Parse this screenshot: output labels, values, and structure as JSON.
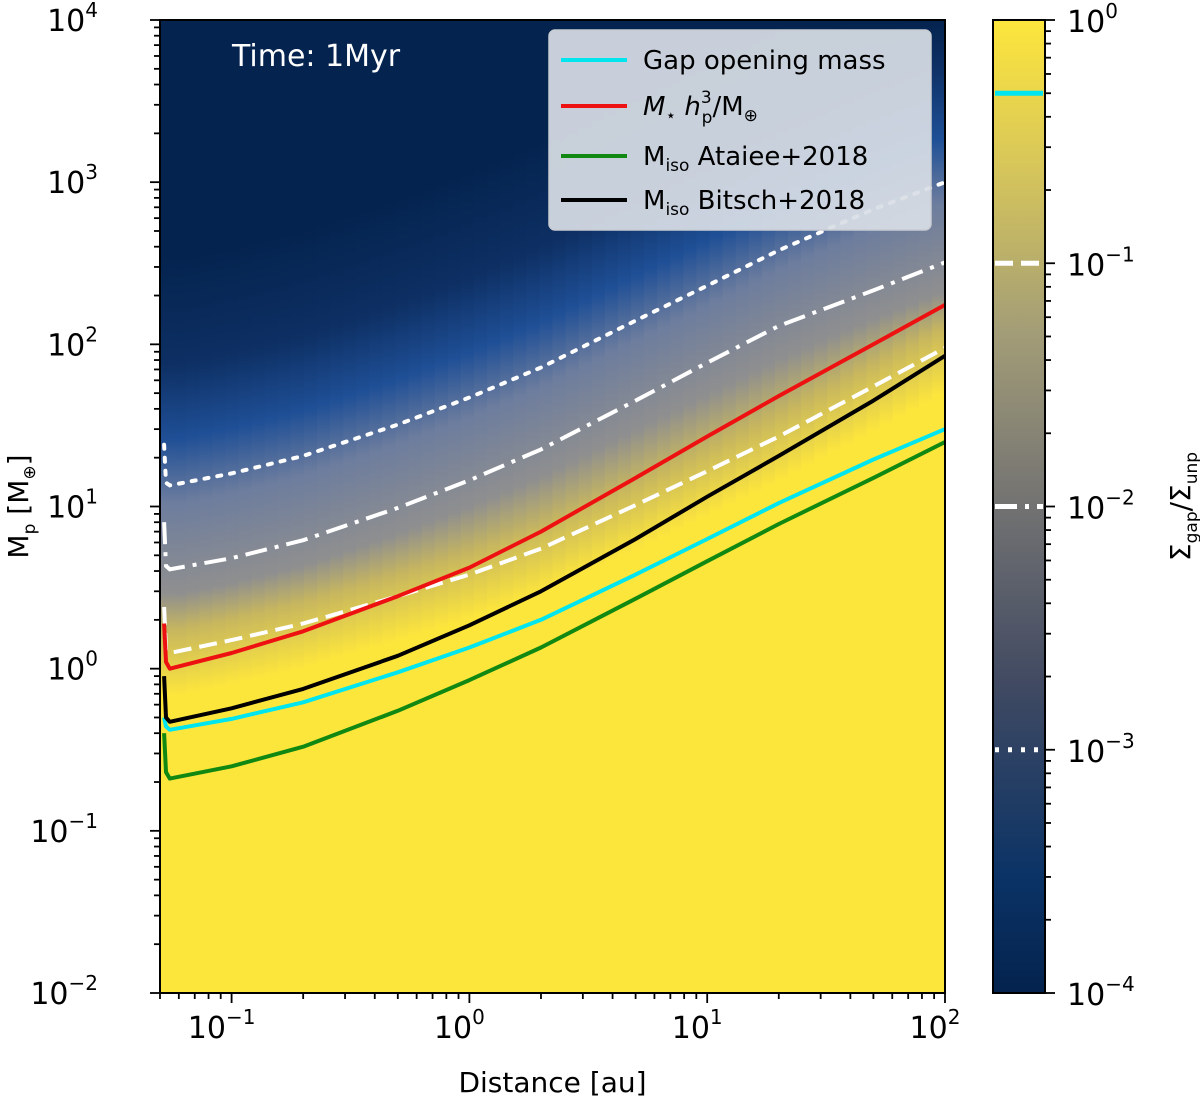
{
  "chart_data": {
    "type": "line",
    "title": "",
    "annotation": "Time: 1Myr",
    "xlabel": "Distance [au]",
    "ylabel": {
      "main": "M",
      "sub": "p",
      "unit": "[M",
      "unit_sub": "⊕",
      "unit_close": "]"
    },
    "xscale": "log",
    "yscale": "log",
    "xlim": [
      0.05,
      100
    ],
    "ylim": [
      0.01,
      10000
    ],
    "x_ticks": [
      {
        "value": 0.1,
        "base": "10",
        "exp": "−1"
      },
      {
        "value": 1,
        "base": "10",
        "exp": "0"
      },
      {
        "value": 10,
        "base": "10",
        "exp": "1"
      },
      {
        "value": 100,
        "base": "10",
        "exp": "2"
      }
    ],
    "y_ticks": [
      {
        "value": 0.01,
        "base": "10",
        "exp": "−2"
      },
      {
        "value": 0.1,
        "base": "10",
        "exp": "−1"
      },
      {
        "value": 1,
        "base": "10",
        "exp": "0"
      },
      {
        "value": 10,
        "base": "10",
        "exp": "1"
      },
      {
        "value": 100,
        "base": "10",
        "exp": "2"
      },
      {
        "value": 1000,
        "base": "10",
        "exp": "3"
      },
      {
        "value": 10000,
        "base": "10",
        "exp": "4"
      }
    ],
    "legend_position": "top-right",
    "series": [
      {
        "name": "Gap opening mass",
        "color": "#00e5ee",
        "style": "solid",
        "x": [
          0.052,
          0.053,
          0.055,
          0.1,
          0.2,
          0.5,
          1,
          2,
          5,
          10,
          20,
          50,
          100
        ],
        "y": [
          0.5,
          0.44,
          0.42,
          0.49,
          0.62,
          0.95,
          1.35,
          2.0,
          3.8,
          6.3,
          10.5,
          19.5,
          30
        ]
      },
      {
        "name": "M⋆ h_p^3 / M⊕",
        "color": "#ee1111",
        "style": "solid",
        "x": [
          0.052,
          0.053,
          0.055,
          0.1,
          0.2,
          0.5,
          1,
          2,
          5,
          10,
          20,
          50,
          100
        ],
        "y": [
          1.9,
          1.1,
          1.0,
          1.25,
          1.7,
          2.8,
          4.2,
          7.0,
          15,
          27,
          48,
          100,
          175
        ]
      },
      {
        "name": "M_iso Ataiee+2018",
        "color": "#118811",
        "style": "solid",
        "x": [
          0.052,
          0.053,
          0.055,
          0.1,
          0.2,
          0.5,
          1,
          2,
          5,
          10,
          20,
          50,
          100
        ],
        "y": [
          0.4,
          0.23,
          0.21,
          0.25,
          0.33,
          0.55,
          0.85,
          1.35,
          2.7,
          4.6,
          7.8,
          15,
          25
        ]
      },
      {
        "name": "M_iso Bitsch+2018",
        "color": "#000000",
        "style": "solid",
        "x": [
          0.052,
          0.053,
          0.055,
          0.1,
          0.2,
          0.5,
          1,
          2,
          5,
          10,
          20,
          50,
          100
        ],
        "y": [
          0.9,
          0.5,
          0.47,
          0.57,
          0.75,
          1.2,
          1.85,
          3.0,
          6.3,
          11.5,
          20.5,
          45,
          85
        ]
      }
    ],
    "contours": [
      {
        "level": 0.1,
        "style": "dashed",
        "x": [
          0.052,
          0.053,
          0.055,
          0.1,
          0.2,
          0.5,
          1,
          2,
          5,
          10,
          20,
          50,
          100
        ],
        "y": [
          2.4,
          1.3,
          1.25,
          1.5,
          1.9,
          2.8,
          3.8,
          5.5,
          10.2,
          16.5,
          27,
          55,
          95
        ]
      },
      {
        "level": 0.01,
        "style": "dashdot",
        "x": [
          0.052,
          0.053,
          0.055,
          0.1,
          0.2,
          0.5,
          1,
          2,
          5,
          10,
          20,
          50,
          100
        ],
        "y": [
          8.0,
          4.3,
          4.1,
          4.8,
          6.2,
          9.8,
          14.5,
          22.5,
          45,
          77,
          130,
          215,
          320
        ]
      },
      {
        "level": 0.001,
        "style": "dotted",
        "x": [
          0.052,
          0.053,
          0.055,
          0.1,
          0.2,
          0.5,
          1,
          2,
          5,
          10,
          20,
          50,
          100
        ],
        "y": [
          24,
          14,
          13.5,
          16,
          20.5,
          32,
          47,
          72,
          140,
          230,
          380,
          680,
          1000
        ]
      }
    ],
    "colorbar": {
      "label": {
        "main": "Σ",
        "sub1": "gap",
        "sep": "/Σ",
        "sub2": "unp"
      },
      "range": [
        0.0001,
        1
      ],
      "scale": "log",
      "ticks": [
        {
          "value": 0.0001,
          "base": "10",
          "exp": "−4"
        },
        {
          "value": 0.001,
          "base": "10",
          "exp": "−3"
        },
        {
          "value": 0.01,
          "base": "10",
          "exp": "−2"
        },
        {
          "value": 0.1,
          "base": "10",
          "exp": "−1"
        },
        {
          "value": 1,
          "base": "10",
          "exp": "0"
        }
      ],
      "markers": [
        {
          "value": 0.5,
          "color": "#00e5ee",
          "style": "solid"
        },
        {
          "value": 0.1,
          "color": "#ffffff",
          "style": "dashed"
        },
        {
          "value": 0.01,
          "color": "#ffffff",
          "style": "dashdot"
        },
        {
          "value": 0.001,
          "color": "#ffffff",
          "style": "dotted"
        }
      ]
    },
    "colors": {
      "low": "#04234e",
      "mid_blue": "#1f4f96",
      "grey": "#8f8f8f",
      "high": "#fde63c"
    }
  }
}
